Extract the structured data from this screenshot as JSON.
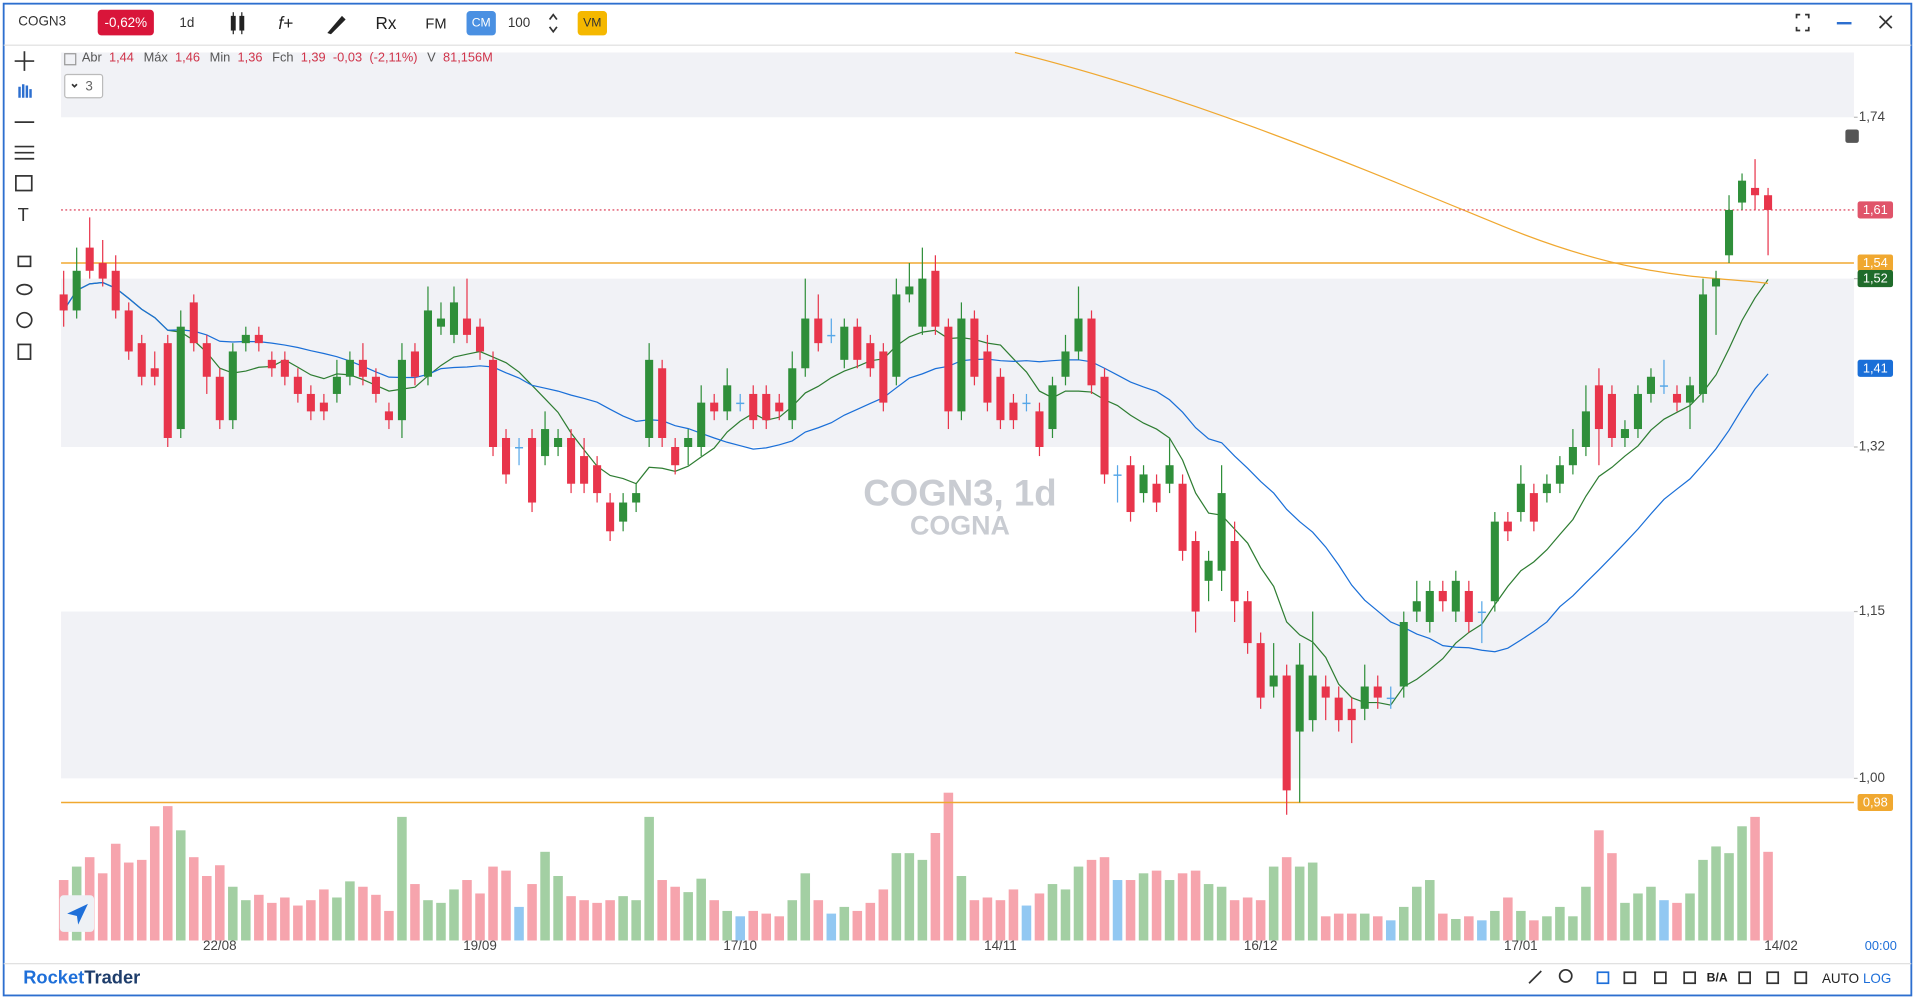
{
  "toolbar": {
    "symbol": "COGN3",
    "change": "-0,62%",
    "interval": "1d",
    "cm": "CM",
    "count": "100",
    "vm": "VM"
  },
  "legend": {
    "open_label": "Abr",
    "open": "1,44",
    "high_label": "Máx",
    "high": "1,46",
    "low_label": "Min",
    "low": "1,36",
    "close_label": "Fch",
    "close": "1,39",
    "change": "-0,03",
    "change_pct": "(-2,11%)",
    "volume_label": "V",
    "volume": "81,156M",
    "collapse": "3"
  },
  "chart_data": {
    "type": "candlestick",
    "title": "COGN3, 1d",
    "subtitle": "COGNA",
    "open": [
      1.5,
      1.48,
      1.56,
      1.54,
      1.53,
      1.48,
      1.44,
      1.41,
      1.44,
      1.34,
      1.49,
      1.44,
      1.4,
      1.35,
      1.44,
      1.45,
      1.42,
      1.42,
      1.4,
      1.38,
      1.37,
      1.38,
      1.4,
      1.42,
      1.4,
      1.36,
      1.35,
      1.43,
      1.4,
      1.46,
      1.45,
      1.47,
      1.46,
      1.42,
      1.33,
      1.32,
      1.33,
      1.31,
      1.32,
      1.33,
      1.31,
      1.3,
      1.26,
      1.24,
      1.26,
      1.33,
      1.41,
      1.32,
      1.32,
      1.32,
      1.37,
      1.36,
      1.37,
      1.38,
      1.38,
      1.37,
      1.35,
      1.41,
      1.47,
      1.45,
      1.42,
      1.46,
      1.44,
      1.43,
      1.4,
      1.5,
      1.46,
      1.53,
      1.46,
      1.36,
      1.47,
      1.43,
      1.4,
      1.37,
      1.37,
      1.36,
      1.34,
      1.4,
      1.43,
      1.47,
      1.4,
      1.29,
      1.3,
      1.27,
      1.28,
      1.28,
      1.28,
      1.22,
      1.18,
      1.19,
      1.22,
      1.16,
      1.12,
      1.08,
      1.09,
      1.04,
      1.05,
      1.08,
      1.07,
      1.06,
      1.06,
      1.08,
      1.07,
      1.08,
      1.15,
      1.14,
      1.17,
      1.15,
      1.17,
      1.15,
      1.16,
      1.24,
      1.25,
      1.27,
      1.27,
      1.28,
      1.3,
      1.32,
      1.39,
      1.38,
      1.33,
      1.34,
      1.38,
      1.39,
      1.38,
      1.37,
      1.38,
      1.51,
      1.55,
      1.62,
      1.64,
      1.63
    ],
    "high": [
      1.53,
      1.56,
      1.6,
      1.57,
      1.55,
      1.49,
      1.45,
      1.43,
      1.45,
      1.48,
      1.5,
      1.45,
      1.41,
      1.44,
      1.46,
      1.46,
      1.43,
      1.43,
      1.41,
      1.39,
      1.38,
      1.42,
      1.43,
      1.44,
      1.41,
      1.37,
      1.44,
      1.44,
      1.51,
      1.49,
      1.51,
      1.52,
      1.47,
      1.43,
      1.34,
      1.33,
      1.34,
      1.36,
      1.34,
      1.34,
      1.33,
      1.31,
      1.27,
      1.27,
      1.28,
      1.44,
      1.42,
      1.33,
      1.34,
      1.39,
      1.38,
      1.41,
      1.38,
      1.39,
      1.39,
      1.38,
      1.43,
      1.52,
      1.5,
      1.47,
      1.47,
      1.47,
      1.45,
      1.44,
      1.52,
      1.54,
      1.56,
      1.55,
      1.47,
      1.49,
      1.48,
      1.45,
      1.41,
      1.38,
      1.38,
      1.37,
      1.4,
      1.45,
      1.51,
      1.48,
      1.41,
      1.3,
      1.31,
      1.3,
      1.29,
      1.33,
      1.29,
      1.23,
      1.21,
      1.3,
      1.24,
      1.17,
      1.13,
      1.12,
      1.1,
      1.12,
      1.15,
      1.09,
      1.08,
      1.07,
      1.1,
      1.09,
      1.08,
      1.15,
      1.18,
      1.18,
      1.18,
      1.19,
      1.18,
      1.16,
      1.25,
      1.25,
      1.3,
      1.28,
      1.29,
      1.31,
      1.34,
      1.39,
      1.41,
      1.39,
      1.35,
      1.39,
      1.41,
      1.42,
      1.39,
      1.4,
      1.52,
      1.53,
      1.63,
      1.66,
      1.68,
      1.64
    ],
    "low": [
      1.46,
      1.47,
      1.52,
      1.51,
      1.47,
      1.42,
      1.39,
      1.39,
      1.32,
      1.33,
      1.43,
      1.38,
      1.34,
      1.34,
      1.43,
      1.43,
      1.4,
      1.39,
      1.37,
      1.35,
      1.35,
      1.37,
      1.39,
      1.39,
      1.37,
      1.34,
      1.33,
      1.39,
      1.39,
      1.45,
      1.44,
      1.44,
      1.42,
      1.31,
      1.28,
      1.3,
      1.25,
      1.3,
      1.31,
      1.27,
      1.27,
      1.26,
      1.22,
      1.23,
      1.25,
      1.32,
      1.32,
      1.29,
      1.3,
      1.31,
      1.35,
      1.35,
      1.36,
      1.34,
      1.34,
      1.35,
      1.34,
      1.4,
      1.43,
      1.44,
      1.41,
      1.41,
      1.4,
      1.36,
      1.39,
      1.49,
      1.45,
      1.45,
      1.34,
      1.35,
      1.39,
      1.36,
      1.34,
      1.34,
      1.36,
      1.31,
      1.33,
      1.39,
      1.42,
      1.38,
      1.28,
      1.26,
      1.24,
      1.26,
      1.25,
      1.27,
      1.2,
      1.13,
      1.16,
      1.17,
      1.14,
      1.11,
      1.06,
      1.07,
      0.97,
      0.98,
      1.04,
      1.05,
      1.04,
      1.03,
      1.05,
      1.06,
      1.06,
      1.07,
      1.14,
      1.13,
      1.15,
      1.14,
      1.13,
      1.12,
      1.15,
      1.22,
      1.24,
      1.23,
      1.26,
      1.27,
      1.29,
      1.31,
      1.3,
      1.32,
      1.32,
      1.33,
      1.37,
      1.38,
      1.36,
      1.34,
      1.37,
      1.45,
      1.54,
      1.61,
      1.61,
      1.55
    ],
    "close": [
      1.48,
      1.53,
      1.53,
      1.52,
      1.48,
      1.43,
      1.4,
      1.4,
      1.33,
      1.46,
      1.44,
      1.4,
      1.35,
      1.43,
      1.45,
      1.44,
      1.41,
      1.4,
      1.38,
      1.36,
      1.36,
      1.4,
      1.42,
      1.4,
      1.38,
      1.35,
      1.42,
      1.4,
      1.48,
      1.47,
      1.49,
      1.45,
      1.43,
      1.32,
      1.29,
      1.32,
      1.26,
      1.34,
      1.33,
      1.28,
      1.28,
      1.27,
      1.23,
      1.26,
      1.27,
      1.42,
      1.33,
      1.3,
      1.33,
      1.37,
      1.36,
      1.39,
      1.37,
      1.35,
      1.35,
      1.36,
      1.41,
      1.47,
      1.44,
      1.45,
      1.46,
      1.42,
      1.41,
      1.37,
      1.5,
      1.51,
      1.52,
      1.46,
      1.36,
      1.47,
      1.4,
      1.37,
      1.35,
      1.35,
      1.37,
      1.32,
      1.39,
      1.43,
      1.47,
      1.39,
      1.29,
      1.29,
      1.25,
      1.29,
      1.26,
      1.3,
      1.21,
      1.15,
      1.2,
      1.27,
      1.16,
      1.12,
      1.07,
      1.09,
      0.99,
      1.1,
      1.09,
      1.07,
      1.05,
      1.05,
      1.08,
      1.07,
      1.07,
      1.14,
      1.16,
      1.17,
      1.16,
      1.18,
      1.14,
      1.15,
      1.24,
      1.23,
      1.28,
      1.24,
      1.28,
      1.3,
      1.32,
      1.36,
      1.34,
      1.33,
      1.34,
      1.38,
      1.4,
      1.39,
      1.37,
      1.39,
      1.5,
      1.52,
      1.61,
      1.65,
      1.63,
      1.61
    ],
    "volume": [
      45,
      55,
      62,
      50,
      72,
      58,
      60,
      85,
      100,
      82,
      62,
      48,
      56,
      40,
      30,
      34,
      28,
      32,
      26,
      30,
      38,
      32,
      44,
      40,
      34,
      22,
      92,
      42,
      30,
      28,
      38,
      45,
      35,
      55,
      52,
      25,
      42,
      66,
      48,
      33,
      30,
      28,
      30,
      33,
      30,
      92,
      45,
      40,
      36,
      46,
      30,
      22,
      18,
      22,
      20,
      18,
      30,
      50,
      30,
      20,
      25,
      22,
      28,
      38,
      65,
      65,
      60,
      80,
      110,
      48,
      30,
      32,
      30,
      38,
      26,
      35,
      42,
      38,
      55,
      60,
      62,
      45,
      45,
      50,
      52,
      45,
      50,
      52,
      42,
      40,
      30,
      32,
      30,
      55,
      62,
      55,
      58,
      18,
      20,
      20,
      20,
      18,
      15,
      25,
      40,
      45,
      20,
      16,
      18,
      15,
      22,
      32,
      22,
      15,
      18,
      25,
      18,
      40,
      82,
      65,
      28,
      35,
      40,
      30,
      28,
      35,
      60,
      70,
      65,
      85,
      92,
      66
    ],
    "colors": {
      "up": "#2f8f3a",
      "down": "#e8354b",
      "flat": "#56a7e8",
      "vol_up": "#a3cfa3",
      "vol_down": "#f6a4ad",
      "vol_flat": "#92c8f2"
    },
    "log": true,
    "ylim": [
      0.873,
      1.837
    ],
    "yticks": [
      {
        "value": 1.74,
        "label": "1,74"
      },
      {
        "value": 1.52,
        "label": "1,52"
      },
      {
        "value": 1.32,
        "label": "1,32"
      },
      {
        "value": 1.15,
        "label": "1,15"
      },
      {
        "value": 1.0,
        "label": "1,00"
      }
    ],
    "xlim": [
      -0.2,
      137.6
    ],
    "xticks": [
      {
        "value": 12,
        "label": "22/08"
      },
      {
        "value": 32,
        "label": "19/09"
      },
      {
        "value": 52,
        "label": "17/10"
      },
      {
        "value": 72,
        "label": "14/11"
      },
      {
        "value": 92,
        "label": "16/12"
      },
      {
        "value": 112,
        "label": "17/01"
      },
      {
        "value": 132,
        "label": "14/02"
      }
    ],
    "price_lines": [
      {
        "value": 1.61,
        "label": "1,61",
        "color": "#e0546a"
      },
      {
        "value": 1.54,
        "label": "1,54",
        "color": "#f0a830"
      },
      {
        "value": 0.98,
        "label": "0,98",
        "color": "#f0a830"
      }
    ],
    "indicator_labels": [
      {
        "value": 1.52,
        "label": "1,52",
        "color": "#1f6b2a"
      },
      {
        "value": 1.41,
        "label": "1,41",
        "color": "#1a6fd8"
      }
    ]
  },
  "footer": {
    "brand_a": "Rocket",
    "brand_b": "Trader",
    "ba": "B/A",
    "auto": "AUTO",
    "log": "LOG",
    "time": "00:00"
  }
}
